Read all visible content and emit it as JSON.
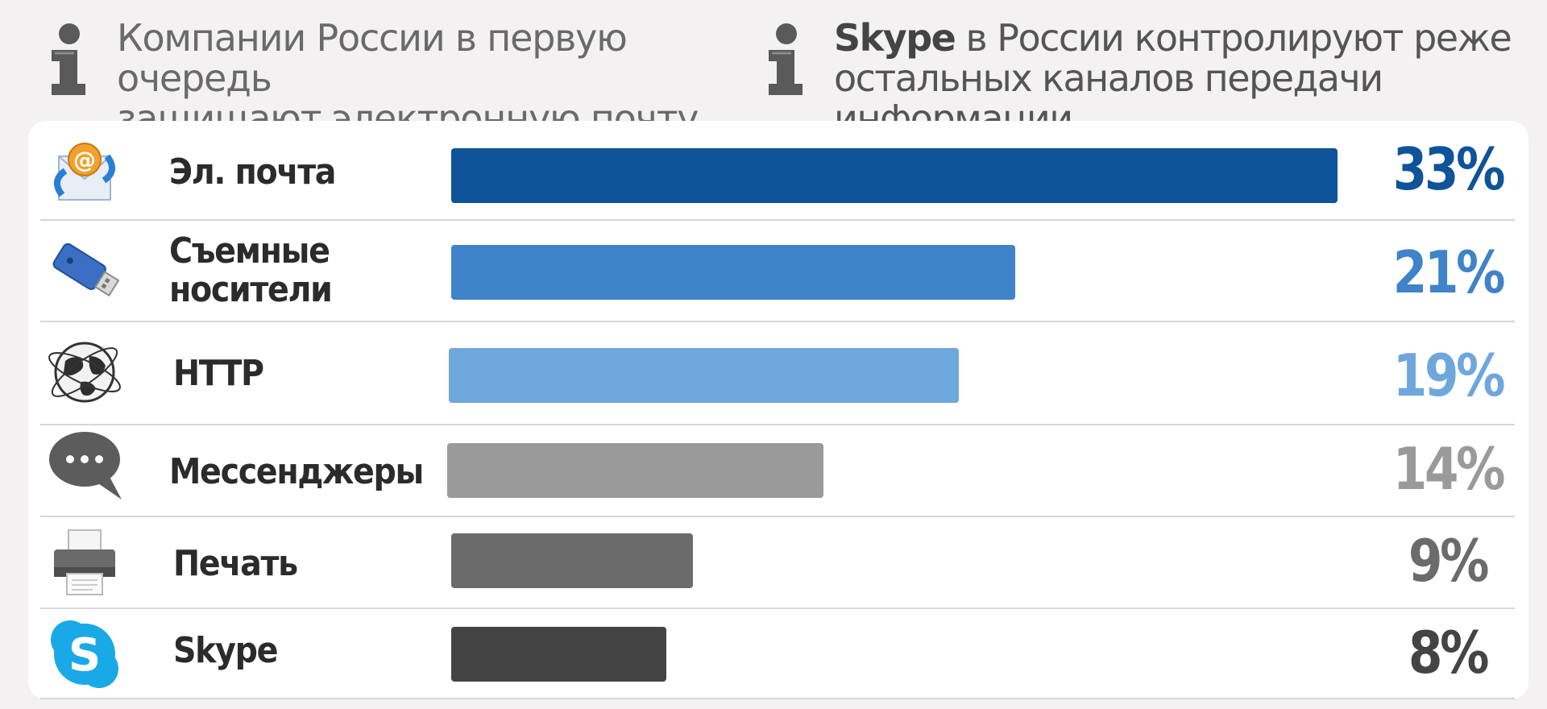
{
  "info": {
    "left": {
      "line1": "Компании России в первую очередь",
      "line2": "защищают электронную почту"
    },
    "right": {
      "brand": "Skype",
      "line1_rest": " в России контролируют реже",
      "line2": "остальных каналов передачи информации"
    }
  },
  "chart_data": {
    "type": "bar",
    "orientation": "horizontal",
    "categories": [
      "Эл. почта",
      "Съемные носители",
      "HTTP",
      "Мессенджеры",
      "Печать",
      "Skype"
    ],
    "values": [
      33,
      21,
      19,
      14,
      9,
      8
    ],
    "value_labels": [
      "33%",
      "21%",
      "19%",
      "14%",
      "9%",
      "8%"
    ],
    "colors": [
      "#0f5398",
      "#3f83c8",
      "#6ea7dc",
      "#9a9a9a",
      "#6b6b6b",
      "#444444"
    ],
    "xlim": [
      0,
      33
    ],
    "grid": false,
    "legend": "none"
  },
  "rows": [
    {
      "line1": "Эл. почта",
      "line2": "",
      "icon": "email-icon",
      "pct": "33%",
      "color": "#0f5398"
    },
    {
      "line1": "Съемные",
      "line2": "носители",
      "icon": "usb-drive-icon",
      "pct": "21%",
      "color": "#3f83c8"
    },
    {
      "line1": "HTTP",
      "line2": "",
      "icon": "globe-icon",
      "pct": "19%",
      "color": "#6ea7dc"
    },
    {
      "line1": "Мессенджеры",
      "line2": "",
      "icon": "chat-bubble-icon",
      "pct": "14%",
      "color": "#9a9a9a"
    },
    {
      "line1": "Печать",
      "line2": "",
      "icon": "printer-icon",
      "pct": "9%",
      "color": "#6b6b6b"
    },
    {
      "line1": "Skype",
      "line2": "",
      "icon": "skype-icon",
      "pct": "8%",
      "color": "#444444"
    }
  ]
}
